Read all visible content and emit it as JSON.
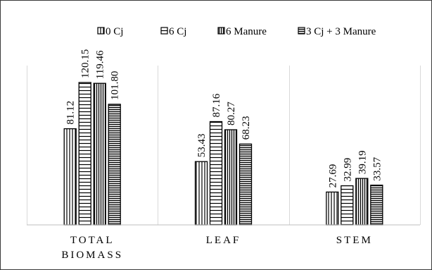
{
  "chart_data": {
    "type": "bar",
    "categories": [
      "TOTAL BIOMASS",
      "LEAF",
      "STEM"
    ],
    "category_label_lines": [
      [
        "TOTAL",
        "BIOMASS"
      ],
      [
        "LEAF"
      ],
      [
        "STEM"
      ]
    ],
    "series": [
      {
        "name": "0 Cj",
        "values": [
          81.12,
          53.43,
          27.69
        ],
        "value_labels": [
          "81.12",
          "53.43",
          "27.69"
        ],
        "pattern": "vertical-lines"
      },
      {
        "name": "6 Cj",
        "values": [
          120.15,
          87.16,
          32.99
        ],
        "value_labels": [
          "120.15",
          "87.16",
          "32.99"
        ],
        "pattern": "horizontal-lines"
      },
      {
        "name": "6 Manure",
        "values": [
          119.46,
          80.27,
          39.19
        ],
        "value_labels": [
          "119.46",
          "80.27",
          "39.19"
        ],
        "pattern": "vertical-lines-dense"
      },
      {
        "name": "3 Cj + 3 Manure",
        "values": [
          101.8,
          68.23,
          33.57
        ],
        "value_labels": [
          "101.80",
          "68.23",
          "33.57"
        ],
        "pattern": "horizontal-lines-dense"
      }
    ],
    "ylim": [
      0,
      140
    ],
    "grid": false,
    "legend_position": "top",
    "colors": {
      "stroke": "#000000",
      "fill": "#ffffff",
      "separator": "#d9d9d9"
    }
  }
}
